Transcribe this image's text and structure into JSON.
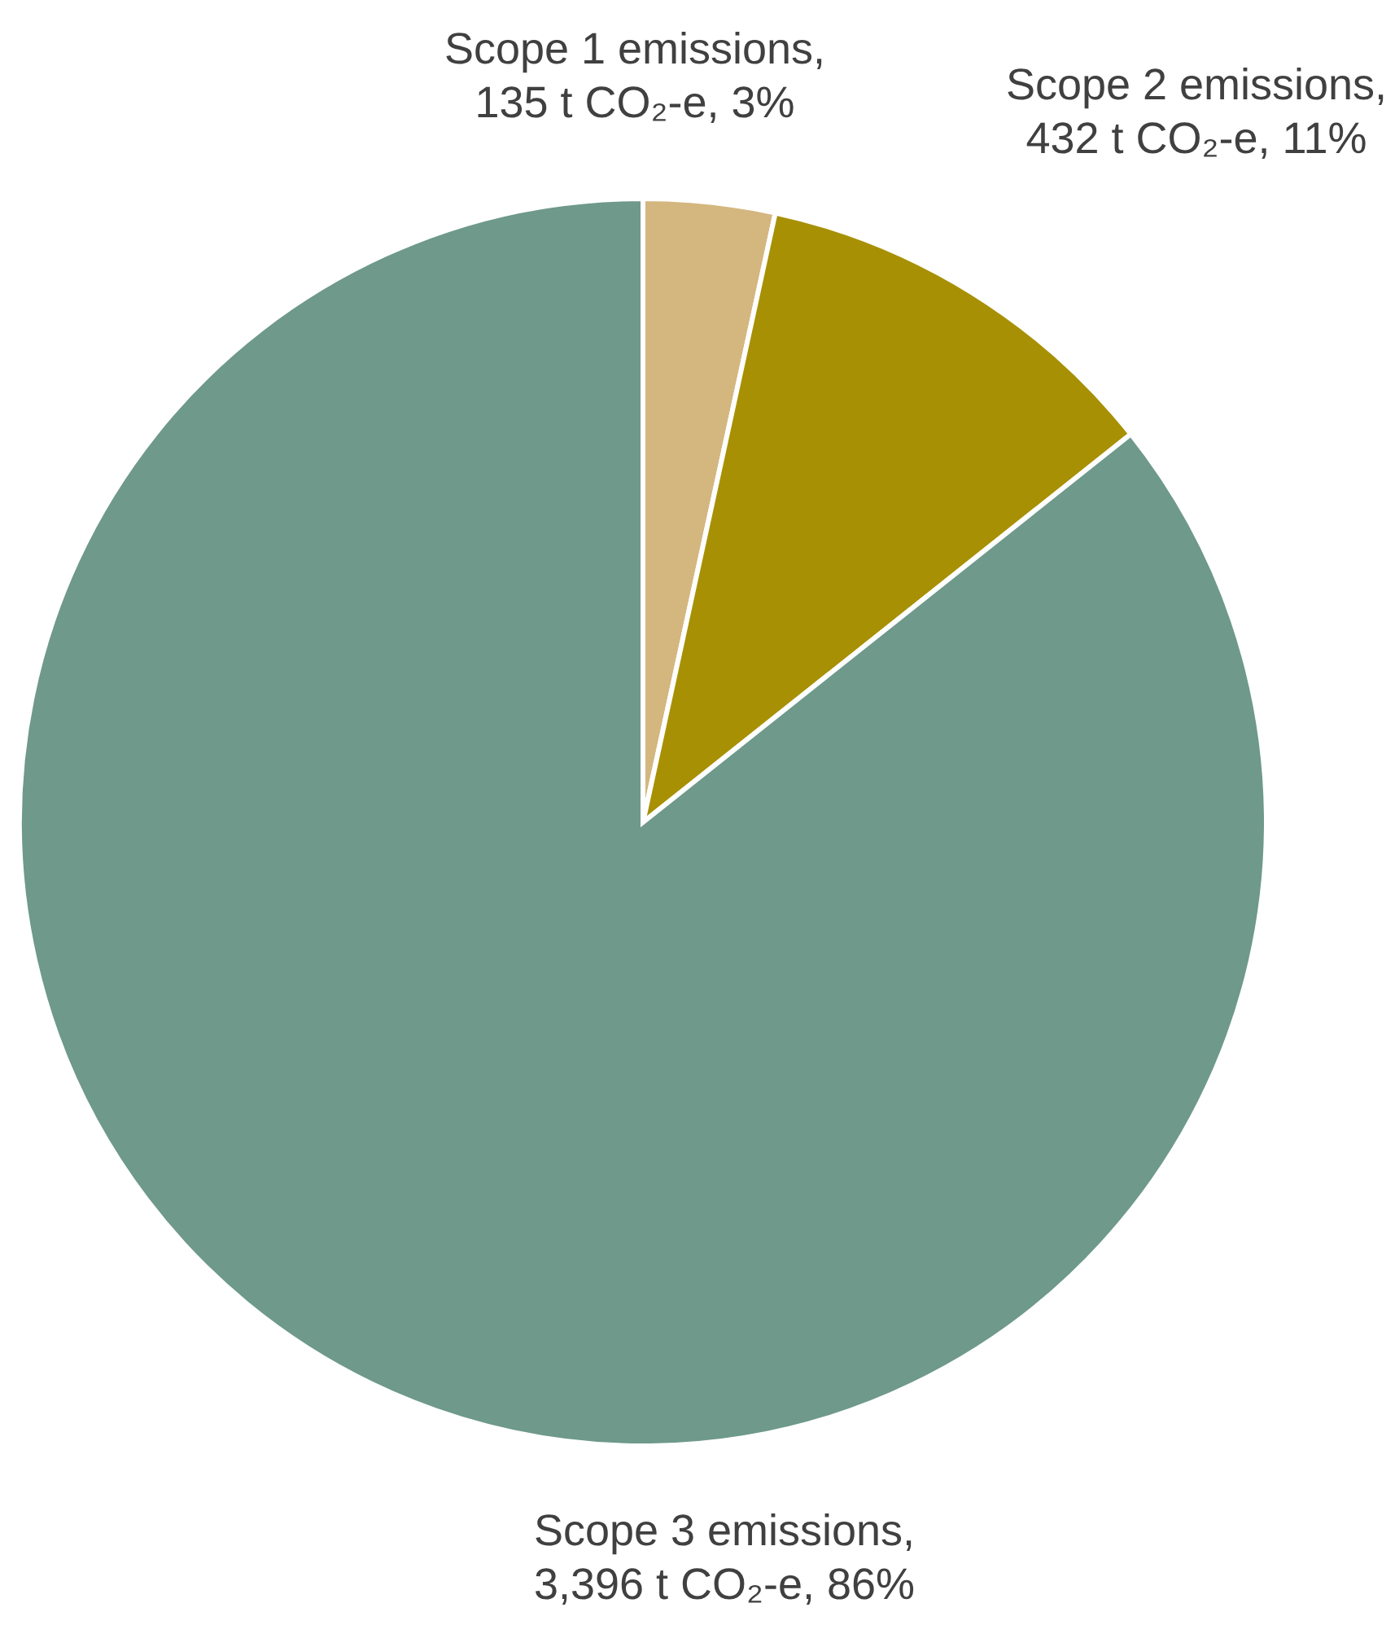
{
  "chart_data": {
    "type": "pie",
    "categories": [
      "Scope 1 emissions, 135 t CO₂-e, 3%",
      "Scope 2 emissions, 432 t CO₂-e, 11%",
      "Scope 3 emissions, 3,396 t CO₂-e, 86%"
    ],
    "values": [
      135,
      432,
      3396
    ],
    "colors": [
      "#d4b67f",
      "#a89005",
      "#6e998b"
    ]
  }
}
